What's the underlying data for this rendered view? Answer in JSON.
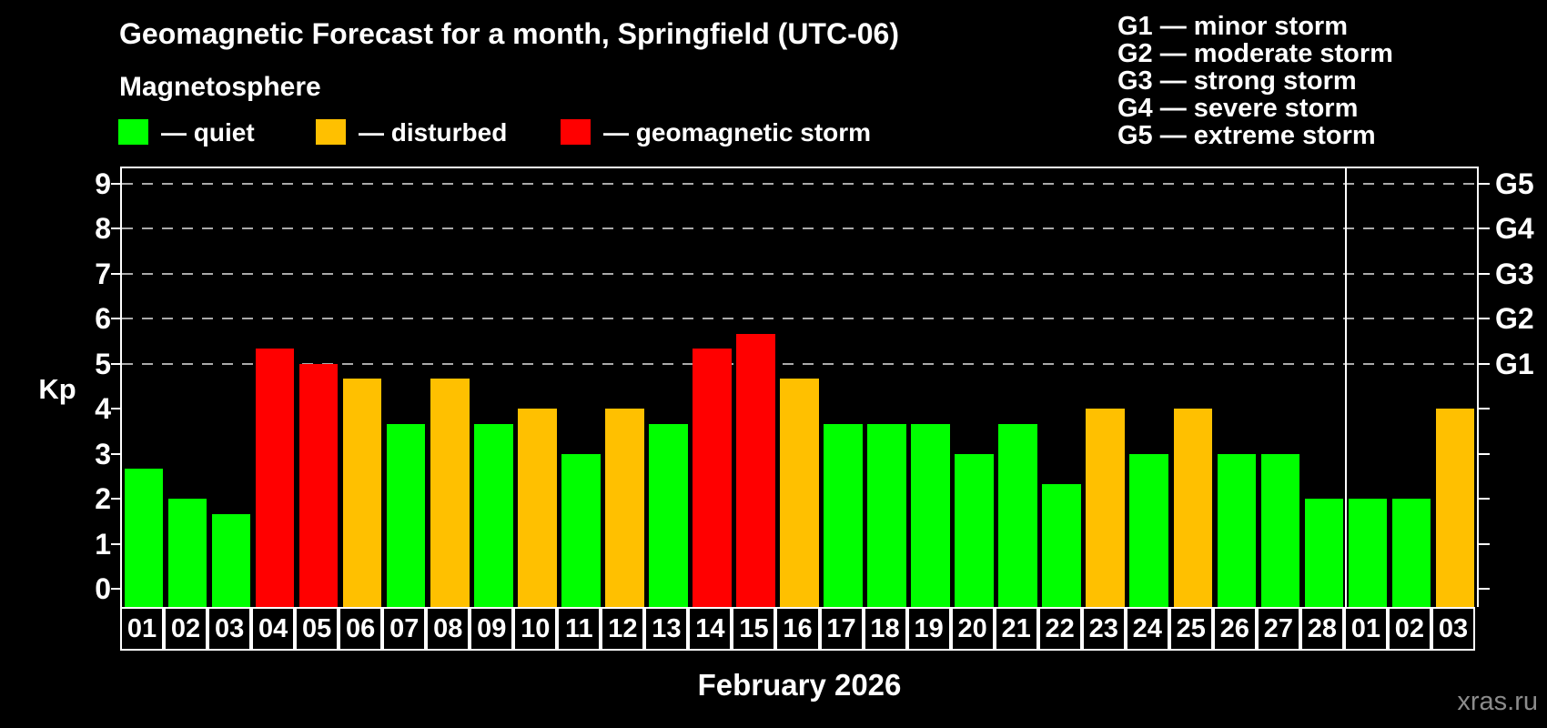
{
  "title": "Geomagnetic Forecast for a month, Springfield (UTC-06)",
  "subtitle": "Magnetosphere",
  "legend": {
    "items": [
      {
        "key": "quiet",
        "label": "— quiet",
        "color": "#00ff00"
      },
      {
        "key": "disturbed",
        "label": "— disturbed",
        "color": "#ffc000"
      },
      {
        "key": "storm",
        "label": "— geomagnetic storm",
        "color": "#ff0000"
      }
    ]
  },
  "g_scale_legend": {
    "lines": [
      "G1 — minor storm",
      "G2 — moderate storm",
      "G3 — strong storm",
      "G4 — severe storm",
      "G5 — extreme storm"
    ]
  },
  "axis": {
    "y_label": "Kp",
    "y_ticks": [
      0,
      1,
      2,
      3,
      4,
      5,
      6,
      7,
      8,
      9
    ],
    "right_axis_labels": [
      {
        "kp": 5,
        "label": "G1"
      },
      {
        "kp": 6,
        "label": "G2"
      },
      {
        "kp": 7,
        "label": "G3"
      },
      {
        "kp": 8,
        "label": "G4"
      },
      {
        "kp": 9,
        "label": "G5"
      }
    ],
    "x_label": "February 2026"
  },
  "watermark": "xras.ru",
  "chart_data": {
    "type": "bar",
    "title": "Geomagnetic Forecast for a month, Springfield (UTC-06)",
    "ylabel": "Kp",
    "ylim": [
      0,
      9
    ],
    "gridlines_at": [
      5,
      6,
      7,
      8,
      9
    ],
    "legend_position": "top-left",
    "categories": [
      "01",
      "02",
      "03",
      "04",
      "05",
      "06",
      "07",
      "08",
      "09",
      "10",
      "11",
      "12",
      "13",
      "14",
      "15",
      "16",
      "17",
      "18",
      "19",
      "20",
      "21",
      "22",
      "23",
      "24",
      "25",
      "26",
      "27",
      "28",
      "01",
      "02",
      "03"
    ],
    "values": [
      2.67,
      2,
      1.67,
      5.33,
      5,
      4.67,
      3.67,
      4.67,
      3.67,
      4,
      3,
      4,
      3.67,
      5.33,
      5.67,
      4.67,
      3.67,
      3.67,
      3.67,
      3,
      3.67,
      2.33,
      4,
      3,
      4,
      3,
      3,
      2,
      2,
      2,
      4
    ],
    "statuses": [
      "quiet",
      "quiet",
      "quiet",
      "storm",
      "storm",
      "disturbed",
      "quiet",
      "disturbed",
      "quiet",
      "disturbed",
      "quiet",
      "disturbed",
      "quiet",
      "storm",
      "storm",
      "disturbed",
      "quiet",
      "quiet",
      "quiet",
      "quiet",
      "quiet",
      "quiet",
      "disturbed",
      "quiet",
      "disturbed",
      "quiet",
      "quiet",
      "quiet",
      "quiet",
      "quiet",
      "disturbed"
    ],
    "status_colors": {
      "quiet": "#00ff00",
      "disturbed": "#ffc000",
      "storm": "#ff0000"
    },
    "month_separator_after_index": 27
  }
}
